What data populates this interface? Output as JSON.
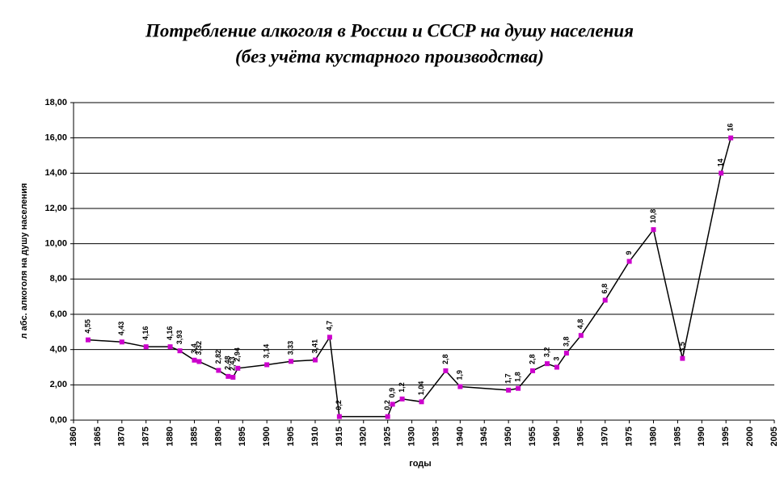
{
  "chart_data": {
    "type": "line",
    "title": "Потребление алкоголя в России и СССР на душу населения",
    "subtitle": "(без учёта кустарного производства)",
    "x_label": "годы",
    "y_label": "л абс. алкоголя на душу населения",
    "x": [
      1863,
      1870,
      1875,
      1880,
      1882,
      1885,
      1886,
      1890,
      1892,
      1893,
      1894,
      1900,
      1905,
      1910,
      1913,
      1915,
      1925,
      1926,
      1928,
      1932,
      1937,
      1940,
      1950,
      1952,
      1955,
      1958,
      1960,
      1962,
      1965,
      1970,
      1975,
      1980,
      1986,
      1994,
      1996
    ],
    "series": [
      {
        "color": "#000000",
        "marker_color": "#cc00cc",
        "values": [
          4.55,
          4.43,
          4.16,
          4.16,
          3.93,
          3.4,
          3.32,
          2.82,
          2.48,
          2.43,
          2.94,
          3.14,
          3.33,
          3.41,
          4.7,
          0.2,
          0.2,
          0.9,
          1.2,
          1.04,
          2.8,
          1.9,
          1.7,
          1.8,
          2.8,
          3.2,
          3,
          3.8,
          4.8,
          6.8,
          9,
          10.8,
          3.5,
          14,
          16
        ],
        "value_labels": [
          "4,55",
          "4,43",
          "4,16",
          "4,16",
          "3,93",
          "3,4",
          "3,32",
          "2,82",
          "2,48",
          "2,43",
          "2,94",
          "3,14",
          "3,33",
          "3,41",
          "4,7",
          "0,2",
          "0,2",
          "0,9",
          "1,2",
          "1,04",
          "2,8",
          "1,9",
          "1,7",
          "1,8",
          "2,8",
          "3,2",
          "3",
          "3,8",
          "4,8",
          "6,8",
          "9",
          "10,8",
          "3,5",
          "14",
          "16"
        ]
      }
    ],
    "xlim": [
      1860,
      2005
    ],
    "xticks": [
      1860,
      1865,
      1870,
      1875,
      1880,
      1885,
      1890,
      1895,
      1900,
      1905,
      1910,
      1915,
      1920,
      1925,
      1930,
      1935,
      1940,
      1945,
      1950,
      1955,
      1960,
      1965,
      1970,
      1975,
      1980,
      1985,
      1990,
      1995,
      2000,
      2005
    ],
    "ylim": [
      0,
      18
    ],
    "yticks": [
      {
        "value": 0,
        "label": "0,00"
      },
      {
        "value": 2,
        "label": "2,00"
      },
      {
        "value": 4,
        "label": "4,00"
      },
      {
        "value": 6,
        "label": "6,00"
      },
      {
        "value": 8,
        "label": "8,00"
      },
      {
        "value": 10,
        "label": "10,00"
      },
      {
        "value": 12,
        "label": "12,00"
      },
      {
        "value": 14,
        "label": "14,00"
      },
      {
        "value": 16,
        "label": "16,00"
      },
      {
        "value": 18,
        "label": "18,00"
      }
    ],
    "grid": true
  }
}
